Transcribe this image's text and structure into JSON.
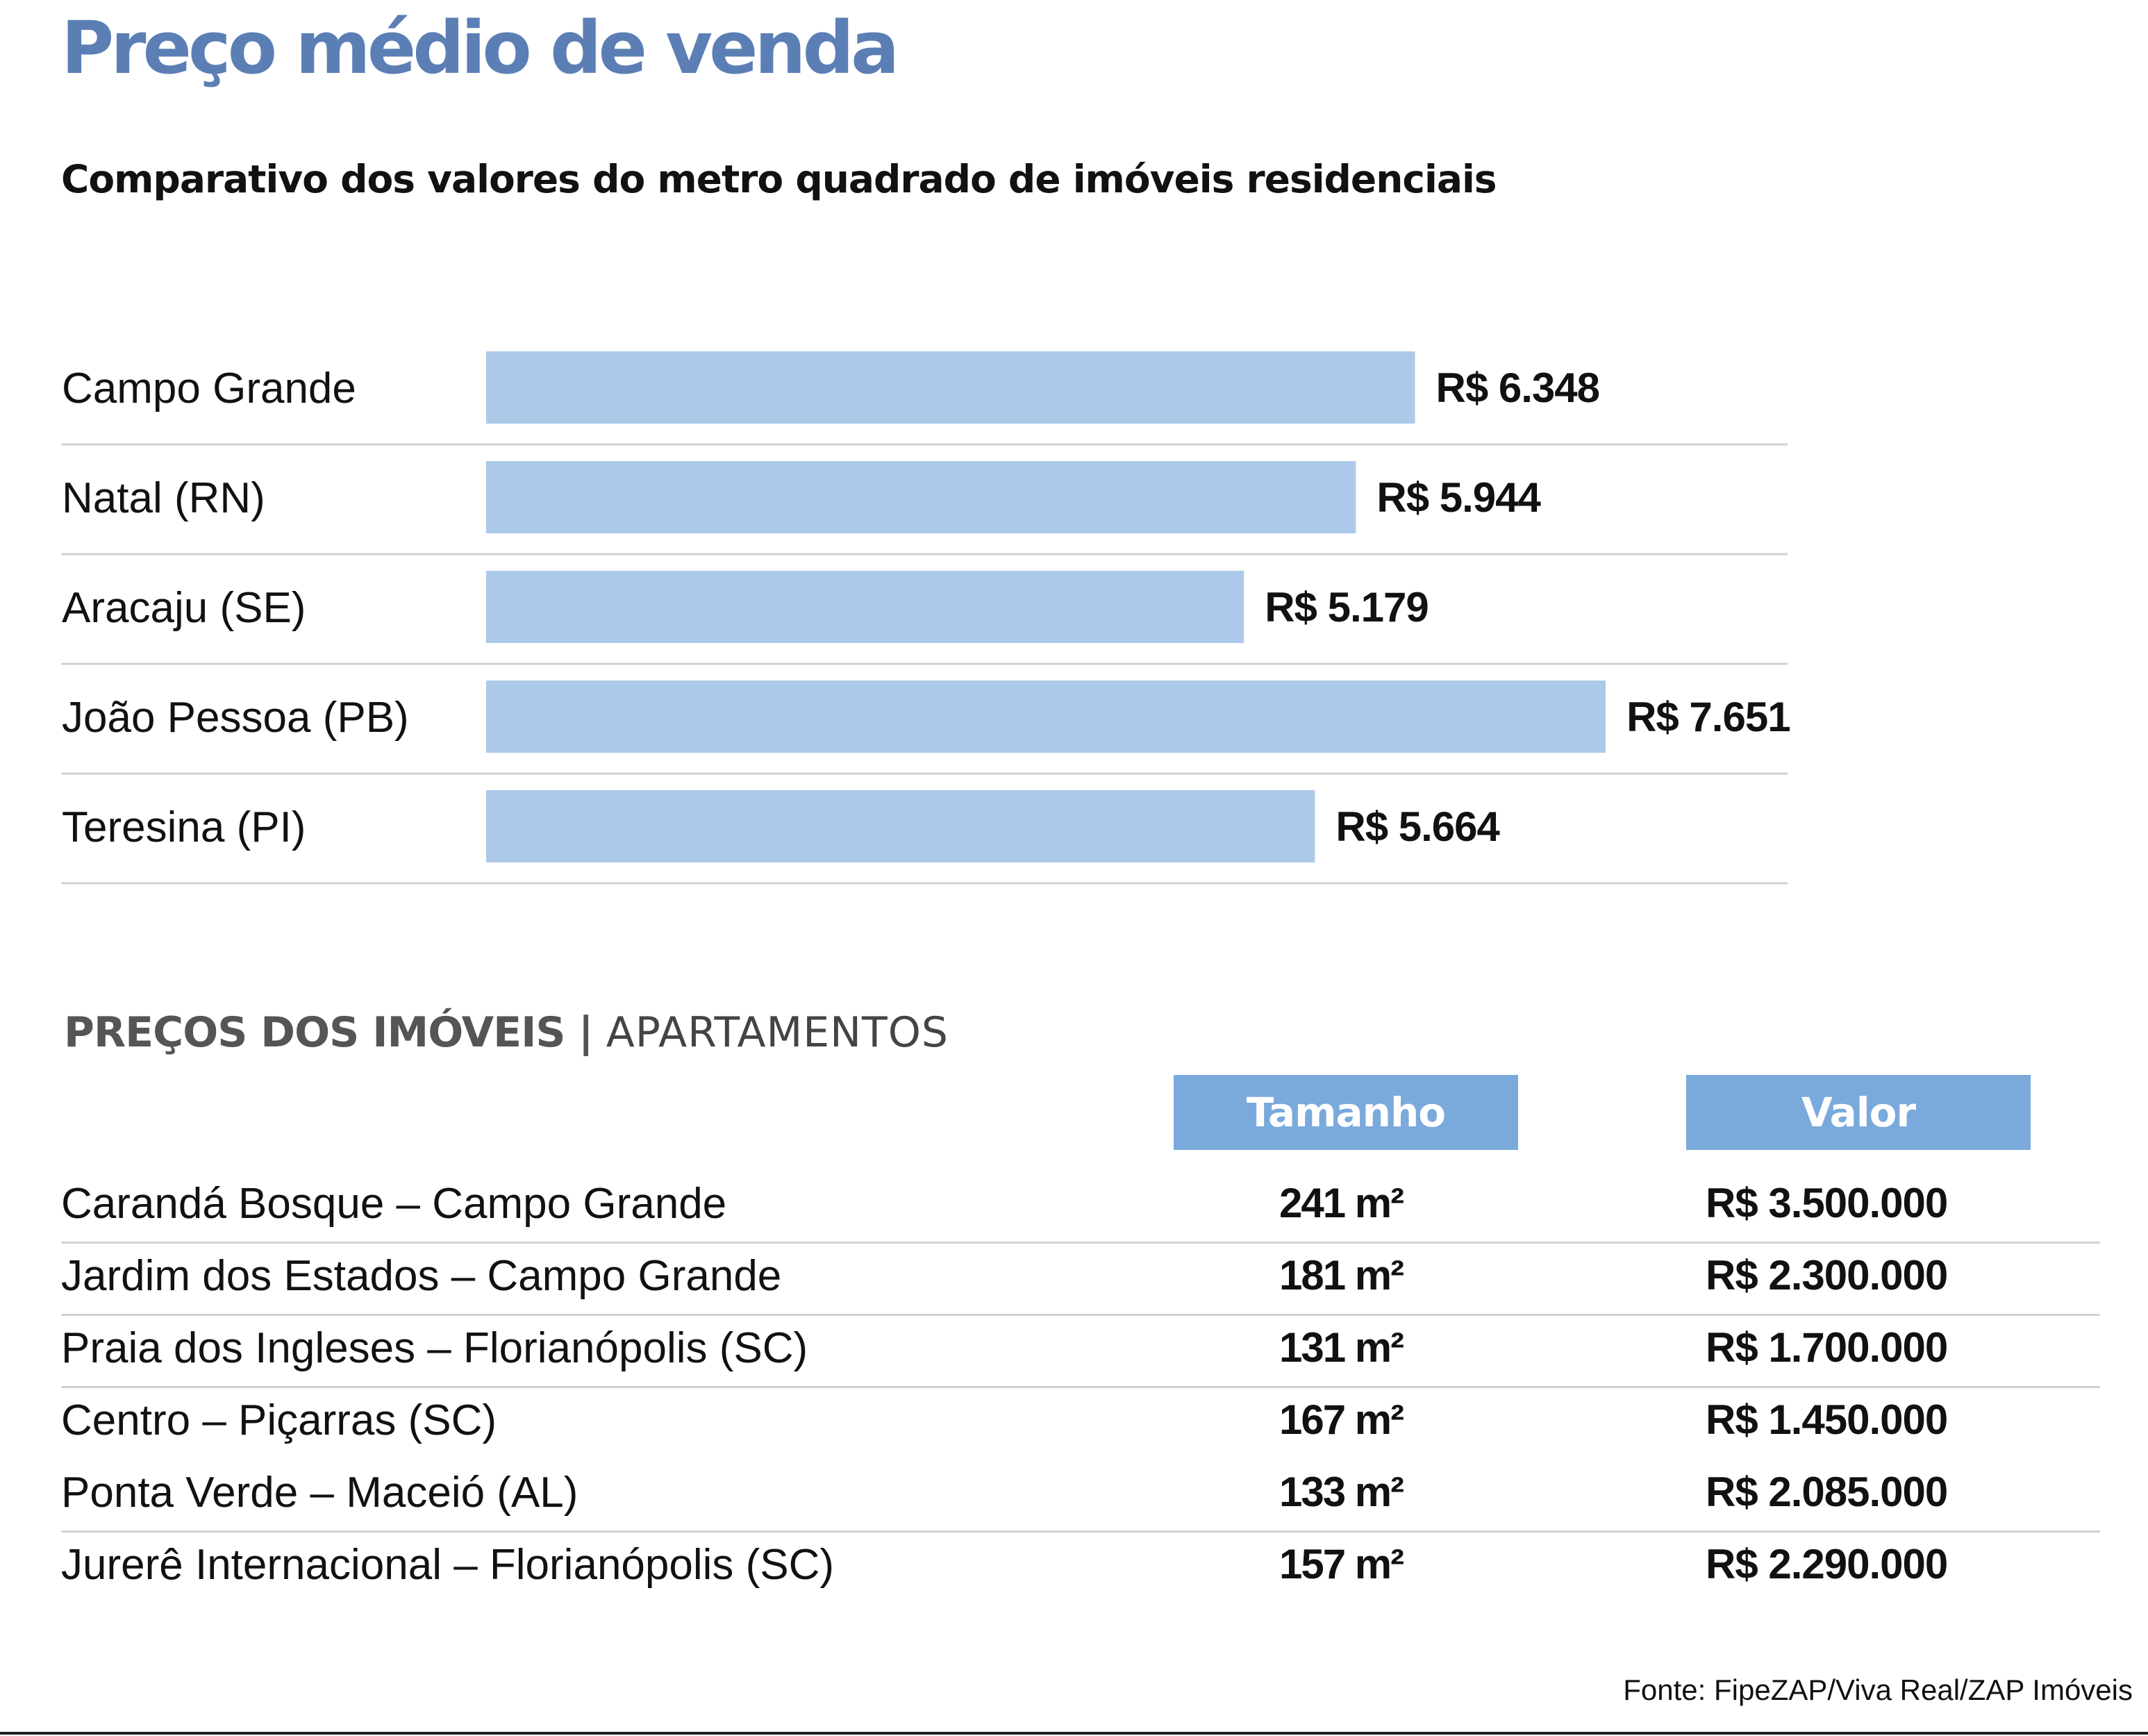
{
  "header": {
    "title": "Preço médio de venda",
    "subtitle": "Comparativo dos valores do metro quadrado de imóveis residenciais"
  },
  "chart_data": {
    "type": "bar",
    "orientation": "horizontal",
    "title": "Preço médio de venda",
    "subtitle": "Comparativo dos valores do metro quadrado de imóveis residenciais",
    "categories": [
      "Campo Grande",
      "Natal (RN)",
      "Aracaju (SE)",
      "João Pessoa (PB)",
      "Teresina (PI)"
    ],
    "values": [
      6348,
      5944,
      5179,
      7651,
      5664
    ],
    "value_labels": [
      "R$ 6.348",
      "R$ 5.944",
      "R$ 5.179",
      "R$ 7.651",
      "R$ 5.664"
    ],
    "xlabel": "",
    "ylabel": "",
    "grid": false,
    "bar_color": "#adc9ea"
  },
  "table": {
    "section_title_bold": "PREÇOS DOS IMÓVEIS",
    "section_title_light": "APARTAMENTOS",
    "section_separator": "|",
    "columns": [
      "Tamanho",
      "Valor"
    ],
    "header_color": "#7aa9dc",
    "rows": [
      {
        "location": "Carandá Bosque – Campo Grande",
        "size": "241 m²",
        "price": "R$ 3.500.000"
      },
      {
        "location": "Jardim dos Estados – Campo Grande",
        "size": "181 m²",
        "price": "R$ 2.300.000"
      },
      {
        "location": "Praia dos Ingleses – Florianópolis (SC)",
        "size": "131 m²",
        "price": "R$ 1.700.000"
      },
      {
        "location": "Centro – Piçarras (SC)",
        "size": "167 m²",
        "price": "R$ 1.450.000"
      },
      {
        "location": "Ponta Verde – Maceió (AL)",
        "size": "133 m²",
        "price": "R$ 2.085.000"
      },
      {
        "location": "Jurerê Internacional – Florianópolis (SC)",
        "size": "157 m²",
        "price": "R$ 2.290.000"
      }
    ]
  },
  "source": "Fonte: FipeZAP/Viva Real/ZAP Imóveis"
}
